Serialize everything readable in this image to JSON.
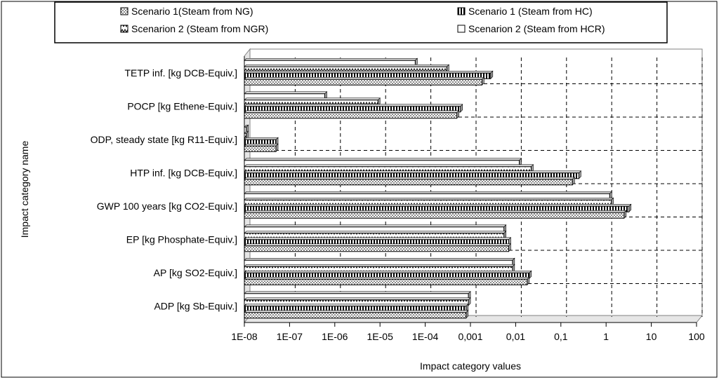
{
  "chart_data": {
    "type": "bar",
    "orientation": "horizontal",
    "x_scale": "log",
    "xlim": [
      1e-08,
      100
    ],
    "xlabel": "Impact category values",
    "ylabel": "Impact category name",
    "x_tick_labels": [
      "1E-08",
      "1E-07",
      "1E-06",
      "1E-05",
      "1E-04",
      "0,001",
      "0,01",
      "0,1",
      "1",
      "10",
      "100"
    ],
    "grid": true,
    "legend_position": "top",
    "categories": [
      "TETP inf. [kg DCB-Equiv.]",
      "POCP [kg Ethene-Equiv.]",
      "ODP, steady state [kg R11-Equiv.]",
      "HTP inf. [kg DCB-Equiv.]",
      "GWP 100 years [kg CO2-Equiv.]",
      "EP [kg Phosphate-Equiv.]",
      "AP [kg SO2-Equiv.]",
      "ADP [kg Sb-Equiv.]"
    ],
    "series": [
      {
        "name": "Scenarion 2 (Steam from HCR)",
        "pattern": "blank",
        "values": [
          6e-05,
          6e-07,
          1.1e-08,
          0.012,
          1.2,
          0.0055,
          0.0085,
          0.0009
        ]
      },
      {
        "name": "Scenarion 2 (Steam from NGR)",
        "pattern": "zigzag",
        "values": [
          0.0003,
          9e-06,
          1.1e-08,
          0.022,
          1.3,
          0.0055,
          0.0085,
          0.0009
        ]
      },
      {
        "name": "Scenario 1 (Steam from HC)",
        "pattern": "vertical",
        "values": [
          0.0028,
          0.0006,
          5e-08,
          0.25,
          3.2,
          0.007,
          0.02,
          0.0008
        ]
      },
      {
        "name": "Scenario 1(Steam from NG)",
        "pattern": "dots",
        "values": [
          0.0018,
          0.0005,
          5e-08,
          0.18,
          2.5,
          0.007,
          0.018,
          0.0008
        ]
      }
    ],
    "legend": [
      "Scenario 1(Steam from NG)",
      "Scenario 1 (Steam from HC)",
      "Scenarion 2 (Steam from NGR)",
      "Scenarion 2 (Steam from HCR)"
    ],
    "colors": {
      "bar_fill": "#ffffff",
      "bar_pattern": "#000000",
      "plot_background": "#ffffff"
    }
  }
}
